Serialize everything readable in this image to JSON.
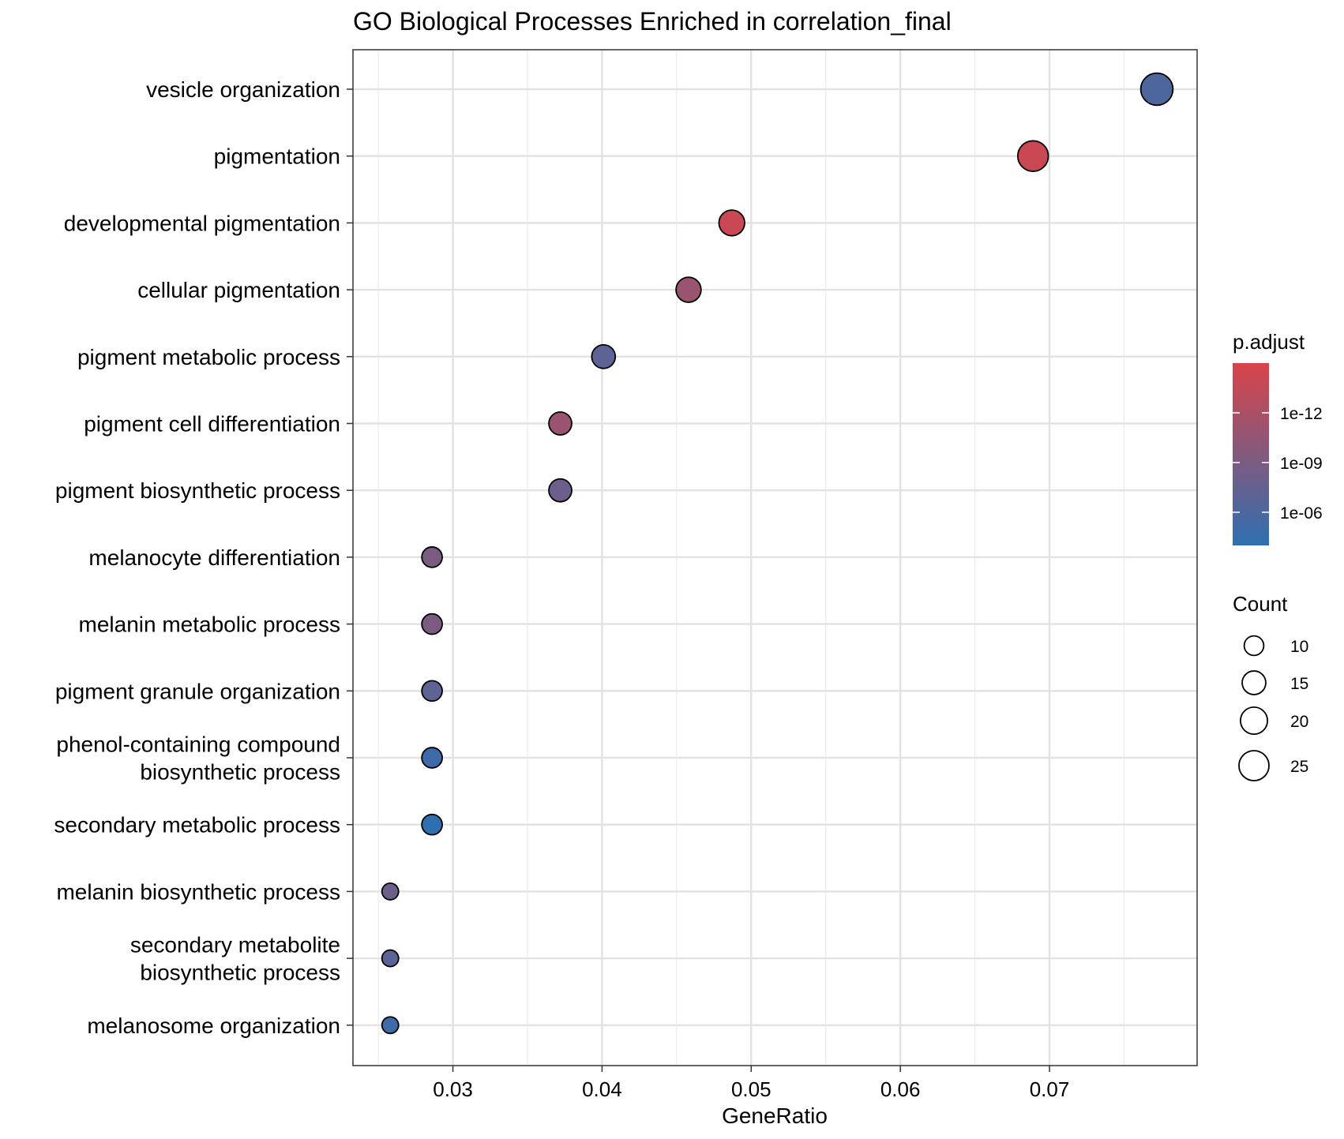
{
  "chart_data": {
    "type": "scatter",
    "title": "GO Biological Processes Enriched in correlation_final",
    "xlabel": "GeneRatio",
    "ylabel": "",
    "xlim": [
      0.0233,
      0.0799
    ],
    "xticks": [
      0.03,
      0.04,
      0.05,
      0.06,
      0.07
    ],
    "xtick_labels": [
      "0.03",
      "0.04",
      "0.05",
      "0.06",
      "0.07"
    ],
    "grid": true,
    "legend_position": "right",
    "categories": [
      "vesicle organization",
      "pigmentation",
      "developmental pigmentation",
      "cellular pigmentation",
      "pigment metabolic process",
      "pigment cell differentiation",
      "pigment biosynthetic process",
      "melanocyte differentiation",
      "melanin metabolic process",
      "pigment granule organization",
      "phenol-containing compound\nbiosynthetic process",
      "secondary metabolic process",
      "melanin biosynthetic process",
      "secondary metabolite\nbiosynthetic process",
      "melanosome organization"
    ],
    "points": [
      {
        "term": "vesicle organization",
        "gene_ratio": 0.0772,
        "count": 29,
        "p_adjust": 1e-06
      },
      {
        "term": "pigmentation",
        "gene_ratio": 0.0689,
        "count": 26,
        "p_adjust": 1e-14
      },
      {
        "term": "developmental pigmentation",
        "gene_ratio": 0.0487,
        "count": 18,
        "p_adjust": 1e-14
      },
      {
        "term": "cellular pigmentation",
        "gene_ratio": 0.0458,
        "count": 17,
        "p_adjust": 1e-11
      },
      {
        "term": "pigment metabolic process",
        "gene_ratio": 0.0401,
        "count": 15,
        "p_adjust": 1e-07
      },
      {
        "term": "pigment cell differentiation",
        "gene_ratio": 0.0372,
        "count": 14,
        "p_adjust": 1e-11
      },
      {
        "term": "pigment biosynthetic process",
        "gene_ratio": 0.0372,
        "count": 14,
        "p_adjust": 1e-08
      },
      {
        "term": "melanocyte differentiation",
        "gene_ratio": 0.0286,
        "count": 11,
        "p_adjust": 1e-09
      },
      {
        "term": "melanin metabolic process",
        "gene_ratio": 0.0286,
        "count": 11,
        "p_adjust": 1e-09
      },
      {
        "term": "pigment granule organization",
        "gene_ratio": 0.0286,
        "count": 11,
        "p_adjust": 1e-07
      },
      {
        "term": "phenol-containing compound\nbiosynthetic process",
        "gene_ratio": 0.0286,
        "count": 11,
        "p_adjust": 1e-05
      },
      {
        "term": "secondary metabolic process",
        "gene_ratio": 0.0286,
        "count": 11,
        "p_adjust": 0.0001
      },
      {
        "term": "melanin biosynthetic process",
        "gene_ratio": 0.0258,
        "count": 7,
        "p_adjust": 1e-08
      },
      {
        "term": "secondary metabolite\nbiosynthetic process",
        "gene_ratio": 0.0258,
        "count": 7,
        "p_adjust": 1e-07
      },
      {
        "term": "melanosome organization",
        "gene_ratio": 0.0258,
        "count": 7,
        "p_adjust": 1e-05
      }
    ],
    "color_legend": {
      "title": "p.adjust",
      "log10_range": [
        -15,
        -4
      ],
      "low_color": "#d9444a",
      "high_color": "#2e6fb0",
      "ticks": [
        1e-12,
        1e-09,
        1e-06
      ],
      "tick_labels": [
        "1e-12",
        "1e-09",
        "1e-06"
      ]
    },
    "size_legend": {
      "title": "Count",
      "values": [
        10,
        15,
        20,
        25
      ],
      "labels": [
        "10",
        "15",
        "20",
        "25"
      ]
    }
  }
}
